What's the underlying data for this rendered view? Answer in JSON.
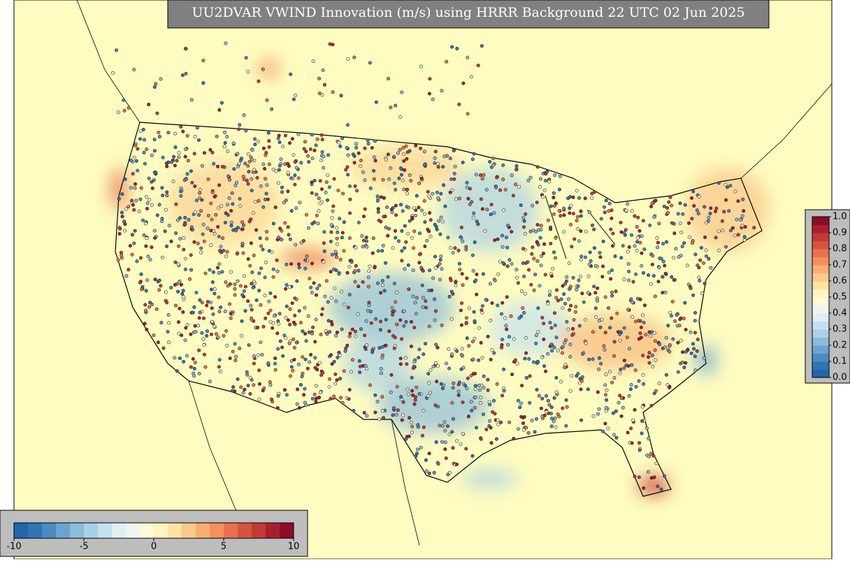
{
  "title": "UU2DVAR VWIND Innovation (m/s) using HRRR Background 22 UTC 02 Jun 2025",
  "horizontal_colorbar": {
    "lim": [
      -10,
      10
    ],
    "ticks": [
      -10,
      -5,
      0,
      5,
      10
    ],
    "colors": [
      "#2166ac",
      "#2f76b4",
      "#4a8bc2",
      "#6aa4d0",
      "#8bbcdc",
      "#a9d0e6",
      "#c5e1ee",
      "#dfeff3",
      "#eef6ee",
      "#fbfbd8",
      "#fff3c0",
      "#fde2a4",
      "#fcc98a",
      "#f9ad72",
      "#f3905d",
      "#e8724d",
      "#d65440",
      "#c23a35",
      "#a9202d",
      "#8b0d26"
    ]
  },
  "vertical_colorbar": {
    "lim": [
      0,
      1
    ],
    "ticks": [
      {
        "value": 0,
        "label": "0.0"
      },
      0.1,
      0.2,
      0.3,
      0.4,
      0.5,
      0.6,
      0.7,
      0.8,
      0.9,
      {
        "value": 1,
        "label": "1.0"
      }
    ],
    "colors": [
      "#2166ac",
      "#2f76b4",
      "#4a8bc2",
      "#6aa4d0",
      "#8bbcdc",
      "#a9d0e6",
      "#c5e1ee",
      "#dfeff3",
      "#eef6ee",
      "#fbfbd8",
      "#fff3c0",
      "#fde2a4",
      "#fcc98a",
      "#f9ad72",
      "#f3905d",
      "#e8724d",
      "#d65440",
      "#c23a35",
      "#a9202d",
      "#8b0d26"
    ]
  }
}
